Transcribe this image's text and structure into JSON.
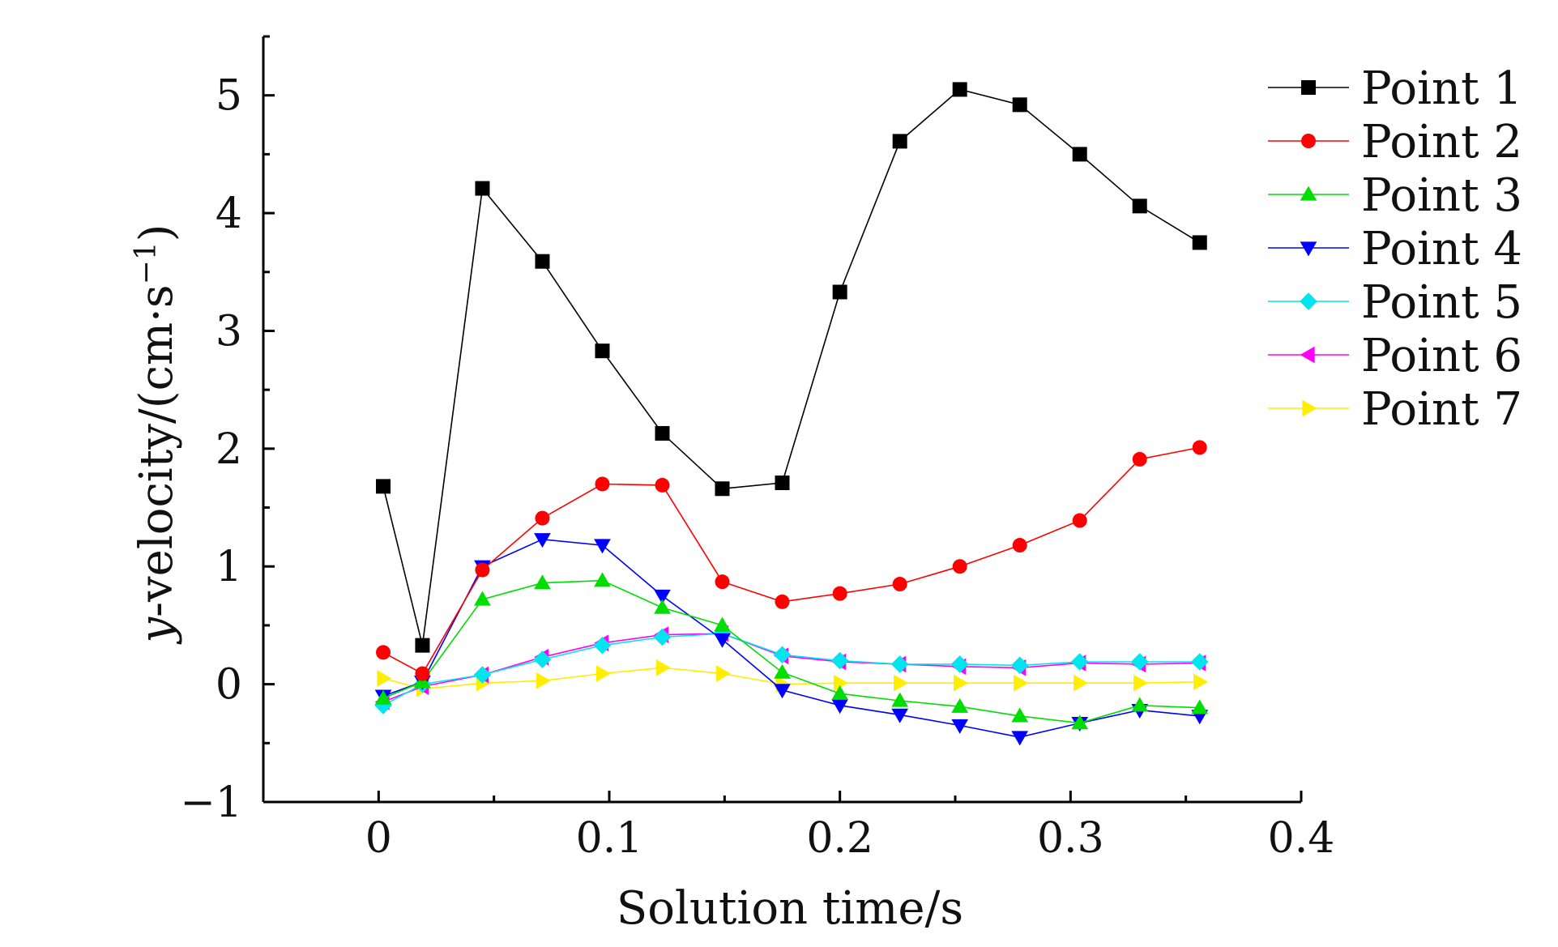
{
  "chart_data": {
    "type": "line",
    "xlabel": "Solution time/s",
    "ylabel": "y-velocity/(cm·s⁻¹)",
    "ylabel_italic_part": "y",
    "ylabel_rest": "-velocity/(cm·s",
    "ylabel_sup": "−1",
    "ylabel_close": ")",
    "xlim": [
      -0.05,
      0.4
    ],
    "ylim": [
      -1,
      5.5
    ],
    "xticks": [
      0,
      0.1,
      0.2,
      0.3,
      0.4
    ],
    "xtick_labels": [
      "0",
      "0.1",
      "0.2",
      "0.3",
      "0.4"
    ],
    "yticks": [
      -1,
      0,
      1,
      2,
      3,
      4,
      5
    ],
    "ytick_labels": [
      "−1",
      "0",
      "1",
      "2",
      "3",
      "4",
      "5"
    ],
    "grid": false,
    "legend_position": "top-right",
    "x": [
      0.002,
      0.019,
      0.045,
      0.071,
      0.097,
      0.123,
      0.149,
      0.175,
      0.2,
      0.226,
      0.252,
      0.278,
      0.304,
      0.33,
      0.356
    ],
    "series": [
      {
        "name": "Point 1",
        "color": "#000000",
        "marker": "square",
        "values": [
          1.68,
          0.33,
          4.21,
          3.59,
          2.83,
          2.13,
          1.66,
          1.71,
          3.33,
          4.61,
          5.05,
          4.92,
          4.5,
          4.06,
          3.75
        ]
      },
      {
        "name": "Point 2",
        "color": "#ff0000",
        "marker": "circle",
        "values": [
          0.27,
          0.09,
          0.97,
          1.41,
          1.7,
          1.69,
          0.87,
          0.7,
          0.77,
          0.85,
          1.0,
          1.18,
          1.39,
          1.91,
          2.01
        ]
      },
      {
        "name": "Point 3",
        "color": "#00dd00",
        "marker": "triangle-up",
        "values": [
          -0.12,
          0.02,
          0.72,
          0.86,
          0.88,
          0.65,
          0.5,
          0.1,
          -0.08,
          -0.14,
          -0.19,
          -0.27,
          -0.33,
          -0.18,
          -0.2
        ]
      },
      {
        "name": "Point 4",
        "color": "#0000ff",
        "marker": "triangle-down",
        "values": [
          -0.1,
          0.02,
          1.0,
          1.23,
          1.18,
          0.75,
          0.38,
          -0.05,
          -0.18,
          -0.26,
          -0.35,
          -0.45,
          -0.33,
          -0.22,
          -0.27
        ]
      },
      {
        "name": "Point 5",
        "color": "#00e5ee",
        "marker": "diamond",
        "values": [
          -0.18,
          0.0,
          0.08,
          0.21,
          0.33,
          0.4,
          0.43,
          0.25,
          0.2,
          0.17,
          0.17,
          0.16,
          0.19,
          0.19,
          0.19
        ]
      },
      {
        "name": "Point 6",
        "color": "#ff00ff",
        "marker": "triangle-left",
        "values": [
          -0.15,
          -0.02,
          0.08,
          0.23,
          0.35,
          0.42,
          0.43,
          0.24,
          0.19,
          0.17,
          0.15,
          0.14,
          0.18,
          0.17,
          0.18
        ]
      },
      {
        "name": "Point 7",
        "color": "#ffee00",
        "marker": "triangle-right",
        "values": [
          0.05,
          -0.04,
          0.01,
          0.03,
          0.09,
          0.14,
          0.09,
          0.0,
          0.01,
          0.01,
          0.01,
          0.01,
          0.01,
          0.01,
          0.02
        ]
      }
    ]
  }
}
